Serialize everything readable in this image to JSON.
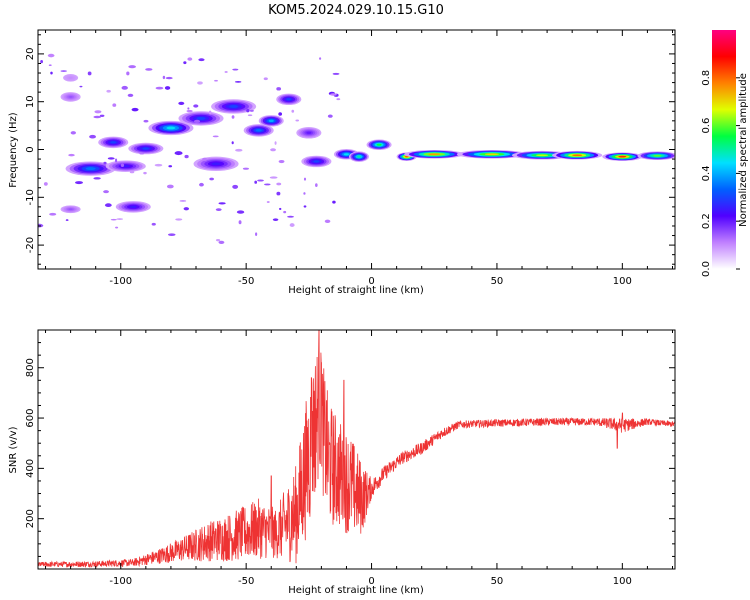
{
  "figure": {
    "title": "KOM5.2024.029.10.15.G10"
  },
  "chart_data": [
    {
      "type": "heatmap",
      "xlabel": "Height of straight line (km)",
      "ylabel": "Frequency (Hz)",
      "xlim": [
        -133,
        121
      ],
      "ylim": [
        -25,
        25
      ],
      "xticks": [
        -100,
        -50,
        0,
        50,
        100
      ],
      "yticks": [
        -20,
        -10,
        0,
        10,
        20
      ],
      "colorbar": {
        "label": "Normalized spectral amplitude",
        "range": [
          0,
          1
        ],
        "ticks": [
          0.0,
          0.2,
          0.4,
          0.6,
          0.8
        ],
        "colormap": [
          "#ffffff",
          "#c080ff",
          "#5000ff",
          "#0060ff",
          "#00e0ff",
          "#00ff40",
          "#e0ff00",
          "#ff8000",
          "#ff0000",
          "#ff0080"
        ]
      },
      "blobs": [
        {
          "x": -112,
          "y": -4,
          "w": 10,
          "h": 1.5,
          "v": 0.35
        },
        {
          "x": -98,
          "y": -3.5,
          "w": 8,
          "h": 1.2,
          "v": 0.25
        },
        {
          "x": -103,
          "y": 1.5,
          "w": 6,
          "h": 1.2,
          "v": 0.3
        },
        {
          "x": -90,
          "y": 0.2,
          "w": 7,
          "h": 1.2,
          "v": 0.3
        },
        {
          "x": -80,
          "y": 4.5,
          "w": 9,
          "h": 1.5,
          "v": 0.45
        },
        {
          "x": -68,
          "y": 6.5,
          "w": 9,
          "h": 1.5,
          "v": 0.3
        },
        {
          "x": -55,
          "y": 9,
          "w": 9,
          "h": 1.5,
          "v": 0.3
        },
        {
          "x": -62,
          "y": -3,
          "w": 9,
          "h": 1.5,
          "v": 0.25
        },
        {
          "x": -45,
          "y": 4,
          "w": 6,
          "h": 1.3,
          "v": 0.35
        },
        {
          "x": -40,
          "y": 6,
          "w": 5,
          "h": 1.2,
          "v": 0.4
        },
        {
          "x": -33,
          "y": 10.5,
          "w": 5,
          "h": 1.2,
          "v": 0.3
        },
        {
          "x": -25,
          "y": 3.5,
          "w": 5,
          "h": 1.2,
          "v": 0.2
        },
        {
          "x": -22,
          "y": -2.5,
          "w": 6,
          "h": 1.2,
          "v": 0.3
        },
        {
          "x": -10,
          "y": -1,
          "w": 5,
          "h": 1.1,
          "v": 0.45
        },
        {
          "x": -5,
          "y": -1.5,
          "w": 4,
          "h": 1.1,
          "v": 0.5
        },
        {
          "x": 3,
          "y": 1,
          "w": 5,
          "h": 1.1,
          "v": 0.55
        },
        {
          "x": 14,
          "y": -1.5,
          "w": 4,
          "h": 0.9,
          "v": 0.8
        },
        {
          "x": 25,
          "y": -1,
          "w": 12,
          "h": 0.9,
          "v": 0.75
        },
        {
          "x": 48,
          "y": -1,
          "w": 14,
          "h": 0.9,
          "v": 0.7
        },
        {
          "x": 68,
          "y": -1.2,
          "w": 12,
          "h": 0.9,
          "v": 0.65
        },
        {
          "x": 82,
          "y": -1.2,
          "w": 10,
          "h": 0.9,
          "v": 0.8
        },
        {
          "x": 100,
          "y": -1.5,
          "w": 8,
          "h": 0.9,
          "v": 0.85
        },
        {
          "x": 114,
          "y": -1.3,
          "w": 8,
          "h": 0.9,
          "v": 0.6
        },
        {
          "x": -120,
          "y": -12.5,
          "w": 4,
          "h": 0.8,
          "v": 0.15
        },
        {
          "x": -95,
          "y": -12,
          "w": 7,
          "h": 1.2,
          "v": 0.25
        },
        {
          "x": -120,
          "y": 11,
          "w": 4,
          "h": 1.0,
          "v": 0.15
        },
        {
          "x": -120,
          "y": 15,
          "w": 3,
          "h": 0.8,
          "v": 0.1
        }
      ]
    },
    {
      "type": "line",
      "xlabel": "Height of straight line (km)",
      "ylabel": "SNR (v/v)",
      "xlim": [
        -133,
        121
      ],
      "ylim": [
        0,
        950
      ],
      "xticks": [
        -100,
        -50,
        0,
        50,
        100
      ],
      "yticks": [
        200,
        400,
        600,
        800
      ],
      "color": "#ee3333",
      "envelope": [
        {
          "x": -133,
          "y": 18,
          "n": 10
        },
        {
          "x": -110,
          "y": 20,
          "n": 12
        },
        {
          "x": -95,
          "y": 25,
          "n": 15
        },
        {
          "x": -85,
          "y": 50,
          "n": 30
        },
        {
          "x": -75,
          "y": 80,
          "n": 50
        },
        {
          "x": -65,
          "y": 110,
          "n": 80
        },
        {
          "x": -55,
          "y": 130,
          "n": 100
        },
        {
          "x": -45,
          "y": 160,
          "n": 120
        },
        {
          "x": -38,
          "y": 140,
          "n": 100
        },
        {
          "x": -30,
          "y": 220,
          "n": 200
        },
        {
          "x": -25,
          "y": 450,
          "n": 300
        },
        {
          "x": -21,
          "y": 650,
          "n": 280
        },
        {
          "x": -17,
          "y": 420,
          "n": 250
        },
        {
          "x": -13,
          "y": 380,
          "n": 220
        },
        {
          "x": -8,
          "y": 330,
          "n": 200
        },
        {
          "x": -4,
          "y": 280,
          "n": 150
        },
        {
          "x": 0,
          "y": 320,
          "n": 40
        },
        {
          "x": 5,
          "y": 380,
          "n": 30
        },
        {
          "x": 12,
          "y": 440,
          "n": 25
        },
        {
          "x": 20,
          "y": 480,
          "n": 25
        },
        {
          "x": 28,
          "y": 540,
          "n": 20
        },
        {
          "x": 35,
          "y": 575,
          "n": 15
        },
        {
          "x": 50,
          "y": 580,
          "n": 15
        },
        {
          "x": 70,
          "y": 585,
          "n": 15
        },
        {
          "x": 90,
          "y": 585,
          "n": 15
        },
        {
          "x": 100,
          "y": 570,
          "n": 30
        },
        {
          "x": 110,
          "y": 585,
          "n": 12
        },
        {
          "x": 121,
          "y": 575,
          "n": 12
        }
      ],
      "spikes": [
        {
          "x": -21,
          "y": 950
        },
        {
          "x": -24,
          "y": 760
        },
        {
          "x": -20,
          "y": 820
        },
        {
          "x": -11,
          "y": 750
        },
        {
          "x": -40,
          "y": 370
        },
        {
          "x": 98,
          "y": 480
        },
        {
          "x": 100,
          "y": 620
        }
      ]
    }
  ]
}
